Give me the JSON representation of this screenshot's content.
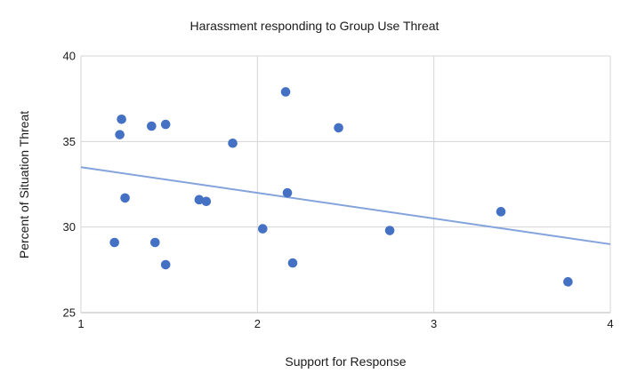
{
  "chart_data": {
    "type": "scatter",
    "title": "Harassment responding to Group Use Threat",
    "xlabel": "Support for Response",
    "ylabel": "Percent of Situation Threat",
    "xlim": [
      1,
      4
    ],
    "ylim": [
      25,
      40
    ],
    "x_ticks": [
      1,
      2,
      3,
      4
    ],
    "y_ticks": [
      25,
      30,
      35,
      40
    ],
    "grid": true,
    "legend": "none",
    "points": [
      [
        1.19,
        29.1
      ],
      [
        1.22,
        35.4
      ],
      [
        1.23,
        36.3
      ],
      [
        1.25,
        31.7
      ],
      [
        1.4,
        35.9
      ],
      [
        1.42,
        29.1
      ],
      [
        1.48,
        36.0
      ],
      [
        1.48,
        27.8
      ],
      [
        1.67,
        31.6
      ],
      [
        1.71,
        31.5
      ],
      [
        1.86,
        34.9
      ],
      [
        2.03,
        29.9
      ],
      [
        2.16,
        37.9
      ],
      [
        2.17,
        32.0
      ],
      [
        2.2,
        27.9
      ],
      [
        2.46,
        35.8
      ],
      [
        2.75,
        29.8
      ],
      [
        3.38,
        30.9
      ],
      [
        3.76,
        26.8
      ]
    ],
    "trendline": {
      "x": [
        1,
        4
      ],
      "y": [
        33.5,
        29.0
      ]
    },
    "colors": {
      "point": "#4471C4",
      "trend": "#84A3DC",
      "grid": "#d5d5d5",
      "axis": "#b7b7b7",
      "text": "#1a1a1a"
    }
  }
}
